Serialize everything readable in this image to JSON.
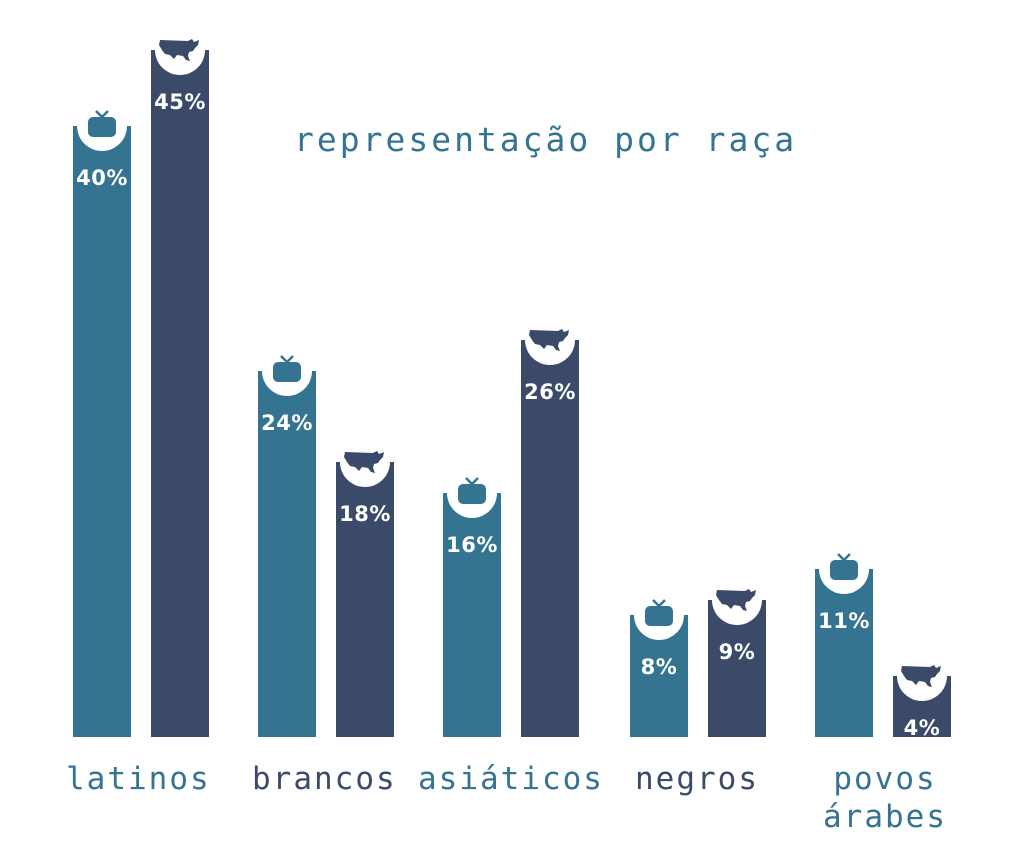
{
  "colors": {
    "tv": "#357491",
    "us": "#3b4a69",
    "background": "#ffffff"
  },
  "title": "representação por raça",
  "icons": {
    "tv": "tv-icon",
    "us": "usa-map-icon"
  },
  "chart_data": {
    "type": "bar",
    "title": "representação por raça",
    "xlabel": "",
    "ylabel": "",
    "grid": false,
    "legend": "icons (tv = TV representation, US map = US population)",
    "ylim": [
      0,
      45
    ],
    "categories": [
      "latinos",
      "brancos",
      "asiáticos",
      "negros",
      "povos árabes"
    ],
    "series": [
      {
        "name": "TV",
        "icon": "tv-icon",
        "color": "#357491",
        "values": [
          40,
          24,
          16,
          8,
          11
        ]
      },
      {
        "name": "EUA",
        "icon": "usa-map-icon",
        "color": "#3b4a69",
        "values": [
          45,
          18,
          26,
          9,
          4
        ]
      }
    ]
  },
  "bars": [
    {
      "label": "40%"
    },
    {
      "label": "45%"
    },
    {
      "label": "24%"
    },
    {
      "label": "18%"
    },
    {
      "label": "16%"
    },
    {
      "label": "26%"
    },
    {
      "label": "8%"
    },
    {
      "label": "9%"
    },
    {
      "label": "11%"
    },
    {
      "label": "4%"
    }
  ],
  "categories": [
    {
      "label": "latinos"
    },
    {
      "label": "brancos"
    },
    {
      "label": "asiáticos"
    },
    {
      "label": "negros"
    },
    {
      "label": "povos",
      "label2": "árabes"
    }
  ]
}
